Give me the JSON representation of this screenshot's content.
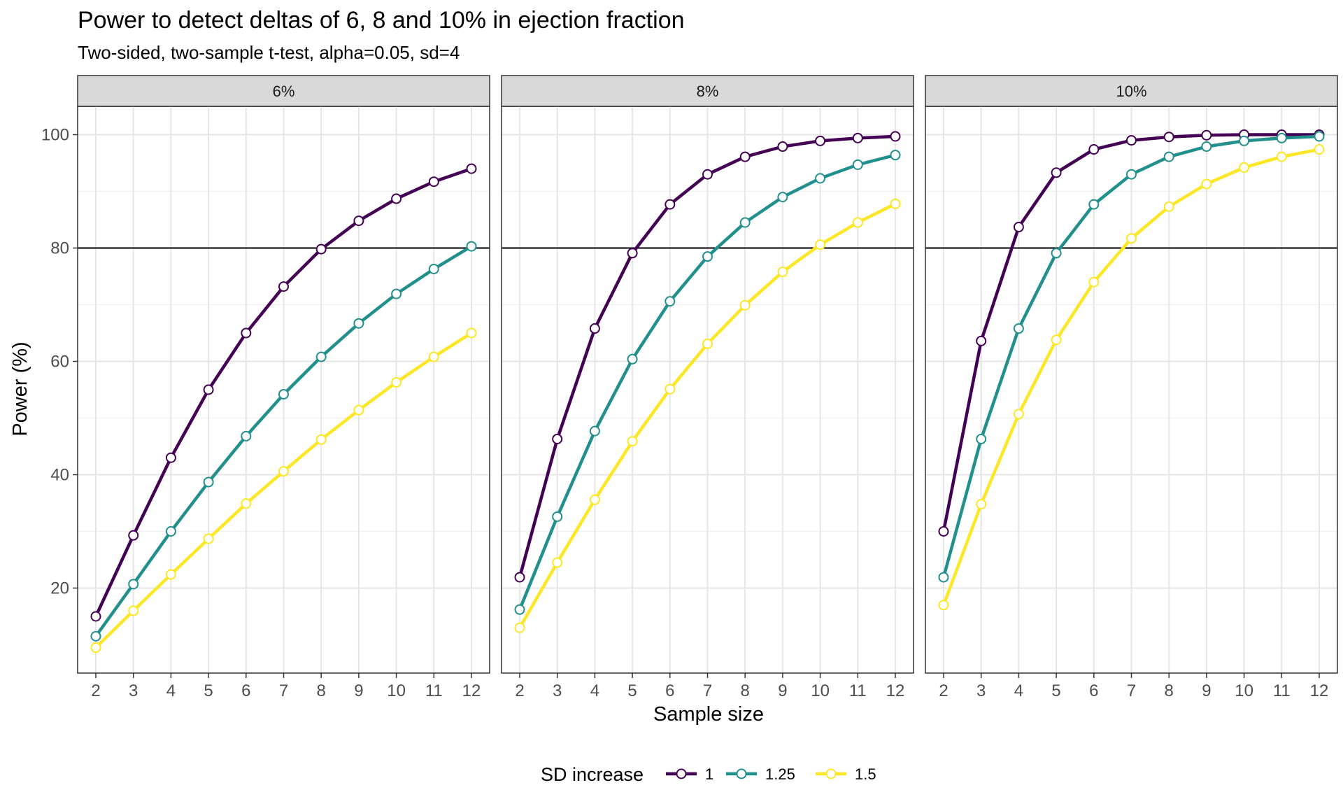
{
  "chart_data": {
    "type": "line",
    "title": "Power to detect deltas of 6, 8 and 10% in ejection fraction",
    "subtitle": "Two-sided, two-sample t-test, alpha=0.05, sd=4",
    "xlabel": "Sample size",
    "ylabel": "Power (%)",
    "x": [
      2,
      3,
      4,
      5,
      6,
      7,
      8,
      9,
      10,
      11,
      12
    ],
    "x_ticks": [
      "2",
      "3",
      "4",
      "5",
      "6",
      "7",
      "8",
      "9",
      "10",
      "11",
      "12"
    ],
    "y_ticks": [
      20,
      40,
      60,
      80,
      100
    ],
    "ylim": [
      5,
      105
    ],
    "reference_line": 80,
    "grid": true,
    "legend": {
      "title": "SD increase",
      "placement": "bottom",
      "entries": [
        "1",
        "1.25",
        "1.5"
      ]
    },
    "colors": {
      "1": "#440154",
      "1.25": "#21908C",
      "1.5": "#FDE725"
    },
    "panels": [
      {
        "label": "6%",
        "series": [
          {
            "name": "1",
            "values": [
              15,
              29.3,
              43,
              55,
              65,
              73.2,
              79.8,
              84.8,
              88.7,
              91.7,
              94
            ]
          },
          {
            "name": "1.25",
            "values": [
              11.5,
              20.7,
              30,
              38.7,
              46.8,
              54.2,
              60.8,
              66.7,
              71.9,
              76.3,
              80.3
            ]
          },
          {
            "name": "1.5",
            "values": [
              9.5,
              16,
              22.4,
              28.7,
              34.9,
              40.6,
              46.2,
              51.4,
              56.3,
              60.8,
              65
            ]
          }
        ]
      },
      {
        "label": "8%",
        "series": [
          {
            "name": "1",
            "values": [
              21.9,
              46.3,
              65.8,
              79.1,
              87.7,
              93,
              96.1,
              97.9,
              98.9,
              99.4,
              99.7
            ]
          },
          {
            "name": "1.25",
            "values": [
              16.2,
              32.6,
              47.7,
              60.4,
              70.6,
              78.5,
              84.5,
              89,
              92.3,
              94.7,
              96.4
            ]
          },
          {
            "name": "1.5",
            "values": [
              13,
              24.5,
              35.6,
              45.9,
              55.1,
              63.1,
              69.9,
              75.8,
              80.6,
              84.5,
              87.8
            ]
          }
        ]
      },
      {
        "label": "10%",
        "series": [
          {
            "name": "1",
            "values": [
              30,
              63.6,
              83.7,
              93.3,
              97.4,
              99,
              99.6,
              99.9,
              100,
              100,
              100
            ]
          },
          {
            "name": "1.25",
            "values": [
              21.9,
              46.3,
              65.8,
              79.1,
              87.7,
              93,
              96.1,
              97.9,
              98.9,
              99.4,
              99.7
            ]
          },
          {
            "name": "1.5",
            "values": [
              17,
              34.8,
              50.7,
              63.8,
              74,
              81.7,
              87.3,
              91.3,
              94.2,
              96.1,
              97.4
            ]
          }
        ]
      }
    ]
  }
}
